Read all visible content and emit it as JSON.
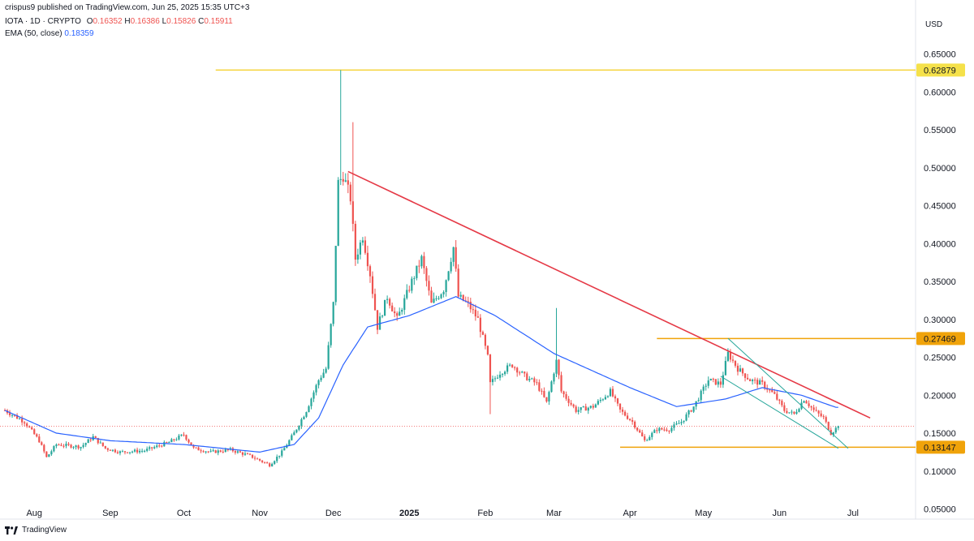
{
  "header": {
    "publish_line": "crispus9 published on TradingView.com, Jun 25, 2025 15:35 UTC+3",
    "symbol": "IOTA · 1D · CRYPTO",
    "ohlc": [
      {
        "label": "O",
        "value": "0.16352"
      },
      {
        "label": "H",
        "value": "0.16386"
      },
      {
        "label": "L",
        "value": "0.15826"
      },
      {
        "label": "C",
        "value": "0.15911"
      }
    ],
    "ema_label": "EMA (50, close)",
    "ema_value": "0.18359"
  },
  "currency": "USD",
  "footer": {
    "brand": "TradingView"
  },
  "colors": {
    "up": "#26a69a",
    "down": "#ef5350",
    "ema": "#2962ff",
    "trendline": "#e53946",
    "level_line": "#f0a30a",
    "ath_line": "#f5d33a",
    "channel": "#26a69a"
  },
  "chart_data": {
    "type": "candlestick",
    "y_ticks": [
      "0.65000",
      "0.60000",
      "0.55000",
      "0.50000",
      "0.45000",
      "0.40000",
      "0.35000",
      "0.30000",
      "0.25000",
      "0.20000",
      "0.15000",
      "0.10000",
      "0.05000"
    ],
    "x_ticks": [
      "Aug",
      "Sep",
      "Oct",
      "Nov",
      "Dec",
      "2025",
      "Feb",
      "Mar",
      "Apr",
      "May",
      "Jun",
      "Jul"
    ],
    "ylim": [
      0.05,
      0.65
    ],
    "price_badges": [
      {
        "value": "0.62879",
        "color": "#f5e14a",
        "text_color": "#131722"
      },
      {
        "value": "0.27469",
        "color": "#f0a30a",
        "text_color": "#131722"
      },
      {
        "value": "0.13147",
        "color": "#f0a30a",
        "text_color": "#131722"
      }
    ],
    "current_price": 0.15911,
    "close_anchors": [
      [
        "2024-07-20",
        0.18
      ],
      [
        "2024-07-28",
        0.165
      ],
      [
        "2024-08-03",
        0.14
      ],
      [
        "2024-08-06",
        0.118
      ],
      [
        "2024-08-10",
        0.135
      ],
      [
        "2024-08-20",
        0.132
      ],
      [
        "2024-08-25",
        0.145
      ],
      [
        "2024-08-30",
        0.13
      ],
      [
        "2024-09-05",
        0.125
      ],
      [
        "2024-09-15",
        0.127
      ],
      [
        "2024-09-25",
        0.138
      ],
      [
        "2024-10-01",
        0.148
      ],
      [
        "2024-10-05",
        0.13
      ],
      [
        "2024-10-12",
        0.125
      ],
      [
        "2024-10-20",
        0.128
      ],
      [
        "2024-10-28",
        0.12
      ],
      [
        "2024-11-05",
        0.108
      ],
      [
        "2024-11-10",
        0.125
      ],
      [
        "2024-11-15",
        0.15
      ],
      [
        "2024-11-20",
        0.18
      ],
      [
        "2024-11-25",
        0.22
      ],
      [
        "2024-11-28",
        0.235
      ],
      [
        "2024-12-01",
        0.32
      ],
      [
        "2024-12-03",
        0.48
      ],
      [
        "2024-12-05",
        0.49
      ],
      [
        "2024-12-08",
        0.46
      ],
      [
        "2024-12-10",
        0.38
      ],
      [
        "2024-12-13",
        0.41
      ],
      [
        "2024-12-16",
        0.36
      ],
      [
        "2024-12-19",
        0.29
      ],
      [
        "2024-12-23",
        0.33
      ],
      [
        "2024-12-27",
        0.3
      ],
      [
        "2025-01-02",
        0.35
      ],
      [
        "2025-01-06",
        0.38
      ],
      [
        "2025-01-10",
        0.32
      ],
      [
        "2025-01-15",
        0.34
      ],
      [
        "2025-01-19",
        0.395
      ],
      [
        "2025-01-21",
        0.33
      ],
      [
        "2025-01-25",
        0.32
      ],
      [
        "2025-01-29",
        0.3
      ],
      [
        "2025-02-02",
        0.25
      ],
      [
        "2025-02-03",
        0.215
      ],
      [
        "2025-02-07",
        0.23
      ],
      [
        "2025-02-12",
        0.24
      ],
      [
        "2025-02-17",
        0.225
      ],
      [
        "2025-02-22",
        0.215
      ],
      [
        "2025-02-26",
        0.19
      ],
      [
        "2025-03-02",
        0.245
      ],
      [
        "2025-03-04",
        0.205
      ],
      [
        "2025-03-10",
        0.18
      ],
      [
        "2025-03-17",
        0.185
      ],
      [
        "2025-03-24",
        0.205
      ],
      [
        "2025-03-28",
        0.18
      ],
      [
        "2025-04-02",
        0.165
      ],
      [
        "2025-04-07",
        0.14
      ],
      [
        "2025-04-12",
        0.155
      ],
      [
        "2025-04-17",
        0.155
      ],
      [
        "2025-04-22",
        0.165
      ],
      [
        "2025-04-27",
        0.185
      ],
      [
        "2025-05-03",
        0.22
      ],
      [
        "2025-05-08",
        0.215
      ],
      [
        "2025-05-11",
        0.255
      ],
      [
        "2025-05-15",
        0.235
      ],
      [
        "2025-05-20",
        0.22
      ],
      [
        "2025-05-25",
        0.215
      ],
      [
        "2025-05-30",
        0.2
      ],
      [
        "2025-06-03",
        0.18
      ],
      [
        "2025-06-07",
        0.175
      ],
      [
        "2025-06-11",
        0.195
      ],
      [
        "2025-06-15",
        0.18
      ],
      [
        "2025-06-19",
        0.17
      ],
      [
        "2025-06-22",
        0.15
      ],
      [
        "2025-06-25",
        0.159
      ]
    ],
    "ema_anchors": [
      [
        "2024-07-20",
        0.18
      ],
      [
        "2024-08-10",
        0.15
      ],
      [
        "2024-09-01",
        0.14
      ],
      [
        "2024-10-01",
        0.135
      ],
      [
        "2024-11-01",
        0.125
      ],
      [
        "2024-11-15",
        0.135
      ],
      [
        "2024-11-25",
        0.17
      ],
      [
        "2024-12-05",
        0.24
      ],
      [
        "2024-12-15",
        0.29
      ],
      [
        "2025-01-01",
        0.305
      ],
      [
        "2025-01-20",
        0.33
      ],
      [
        "2025-02-05",
        0.305
      ],
      [
        "2025-03-01",
        0.255
      ],
      [
        "2025-04-01",
        0.21
      ],
      [
        "2025-04-20",
        0.185
      ],
      [
        "2025-05-10",
        0.195
      ],
      [
        "2025-05-25",
        0.21
      ],
      [
        "2025-06-10",
        0.2
      ],
      [
        "2025-06-24",
        0.184
      ]
    ],
    "wick_spikes": [
      {
        "date": "2024-12-04",
        "high": 0.62879
      },
      {
        "date": "2024-12-09",
        "high": 0.56
      },
      {
        "date": "2025-03-02",
        "high": 0.315
      },
      {
        "date": "2025-02-03",
        "low": 0.175
      }
    ],
    "trendline": {
      "from": [
        "2024-12-07",
        0.495
      ],
      "to": [
        "2025-07-08",
        0.17
      ]
    },
    "channel_upper": {
      "from": [
        "2025-05-11",
        0.275
      ],
      "to": [
        "2025-06-29",
        0.13
      ]
    },
    "channel_lower": {
      "from": [
        "2025-05-08",
        0.225
      ],
      "to": [
        "2025-06-25",
        0.13
      ]
    },
    "levels": [
      {
        "value": 0.62879,
        "from": "2024-10-14",
        "color": "#f5d33a"
      },
      {
        "value": 0.27469,
        "from": "2025-04-12",
        "color": "#f0a30a"
      },
      {
        "value": 0.13147,
        "from": "2025-03-28",
        "color": "#f0a30a"
      }
    ]
  }
}
